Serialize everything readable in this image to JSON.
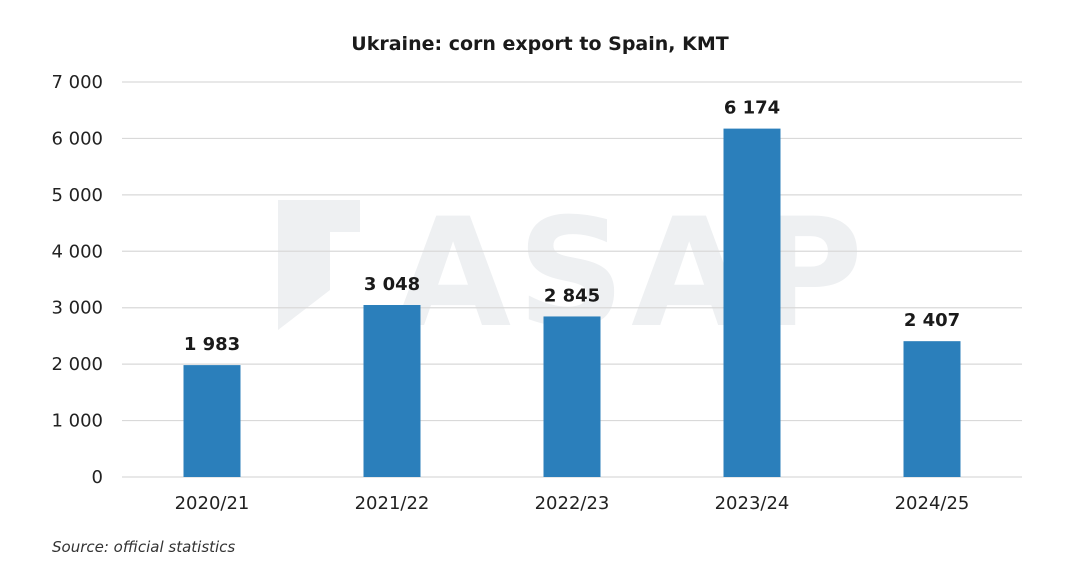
{
  "chart_data": {
    "type": "bar",
    "title": "Ukraine: corn export to Spain, KMT",
    "categories": [
      "2020/21",
      "2021/22",
      "2022/23",
      "2023/24",
      "2024/25"
    ],
    "values": [
      1983,
      3048,
      2845,
      6174,
      2407
    ],
    "value_labels": [
      "1 983",
      "3 048",
      "2 845",
      "6 174",
      "2 407"
    ],
    "yticks": [
      0,
      1000,
      2000,
      3000,
      4000,
      5000,
      6000,
      7000
    ],
    "ytick_labels": [
      "0",
      "1 000",
      "2 000",
      "3 000",
      "4 000",
      "5 000",
      "6 000",
      "7 000"
    ],
    "ylim": [
      0,
      7000
    ],
    "xlabel": "",
    "ylabel": "",
    "grid": true,
    "legend": "none",
    "colors": {
      "bar": "#2b7fbb",
      "grid": "#d9d9d9",
      "watermark": "#eef0f2"
    },
    "source": "Source: official statistics",
    "watermark": "ASAP"
  }
}
